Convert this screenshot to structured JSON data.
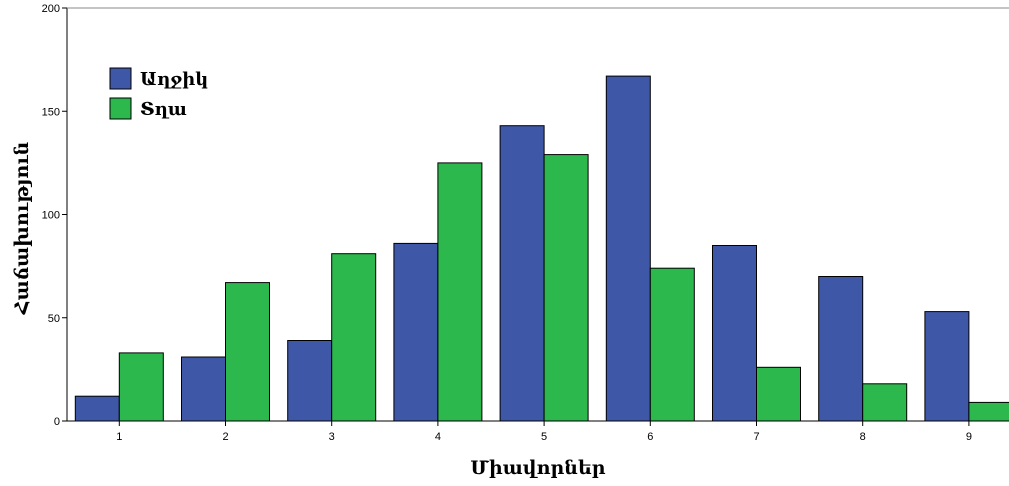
{
  "chart_data": {
    "type": "bar",
    "xlabel": "Միավորներ",
    "ylabel": "Հաճախություն",
    "categories": [
      "1",
      "2",
      "3",
      "4",
      "5",
      "6",
      "7",
      "8",
      "9"
    ],
    "ylim": [
      0,
      200
    ],
    "yticks": [
      "0",
      "50",
      "100",
      "150",
      "200"
    ],
    "legend_position": "top-left",
    "grid": false,
    "series": [
      {
        "name": "Աղջիկ",
        "color": "#3f57a7",
        "values": [
          12,
          31,
          39,
          86,
          143,
          167,
          85,
          70,
          53
        ]
      },
      {
        "name": "Տղա",
        "color": "#2db84d",
        "values": [
          33,
          67,
          81,
          125,
          129,
          74,
          26,
          18,
          9
        ]
      }
    ]
  }
}
